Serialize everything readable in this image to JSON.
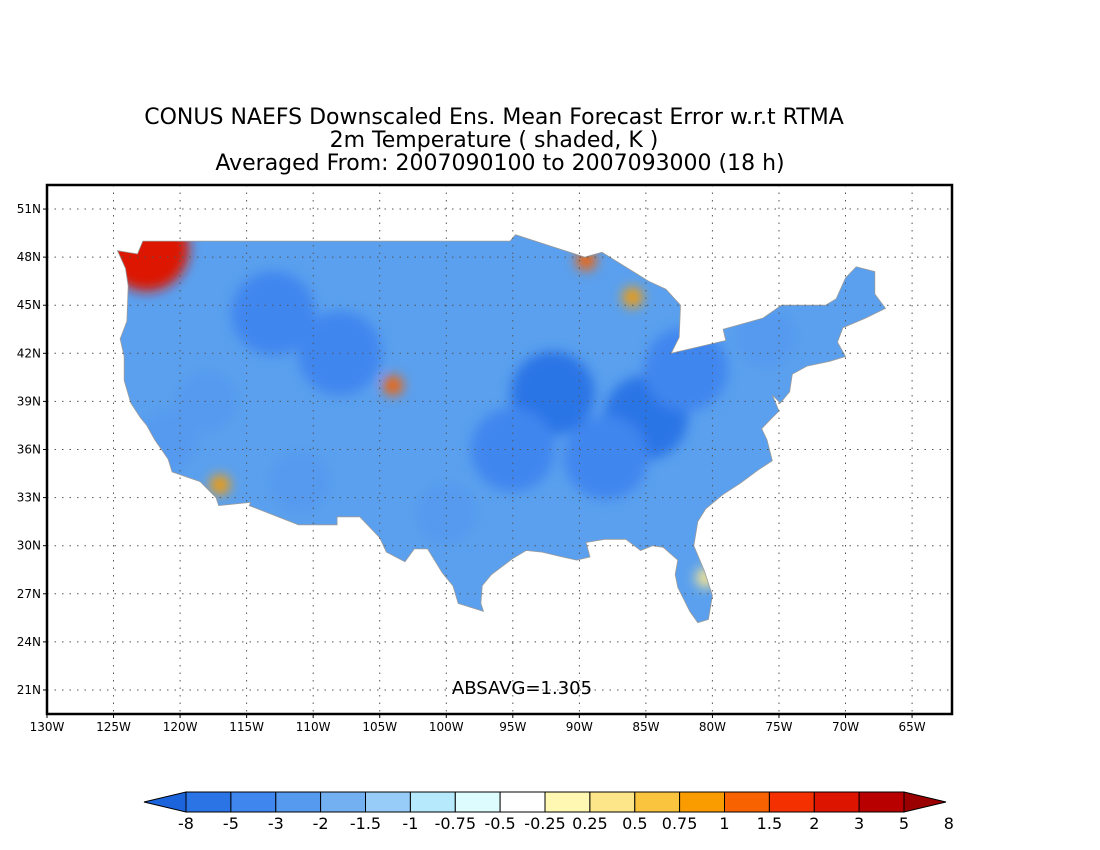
{
  "title": {
    "line1": "CONUS NAEFS Downscaled Ens. Mean Forecast Error w.r.t RTMA",
    "line2": "2m Temperature ( shaded, K )",
    "line3": "Averaged From: 2007090100 to 2007093000 (18 h)"
  },
  "map": {
    "lon_range": [
      -130,
      -62
    ],
    "lat_range": [
      19.5,
      52.5
    ],
    "lon_ticks": [
      {
        "lon": -130,
        "label": "130W"
      },
      {
        "lon": -125,
        "label": "125W"
      },
      {
        "lon": -120,
        "label": "120W"
      },
      {
        "lon": -115,
        "label": "115W"
      },
      {
        "lon": -110,
        "label": "110W"
      },
      {
        "lon": -105,
        "label": "105W"
      },
      {
        "lon": -100,
        "label": "100W"
      },
      {
        "lon": -95,
        "label": "95W"
      },
      {
        "lon": -90,
        "label": "90W"
      },
      {
        "lon": -85,
        "label": "85W"
      },
      {
        "lon": -80,
        "label": "80W"
      },
      {
        "lon": -75,
        "label": "75W"
      },
      {
        "lon": -70,
        "label": "70W"
      },
      {
        "lon": -65,
        "label": "65W"
      }
    ],
    "lat_ticks": [
      {
        "lat": 21,
        "label": "21N"
      },
      {
        "lat": 24,
        "label": "24N"
      },
      {
        "lat": 27,
        "label": "27N"
      },
      {
        "lat": 30,
        "label": "30N"
      },
      {
        "lat": 33,
        "label": "33N"
      },
      {
        "lat": 36,
        "label": "36N"
      },
      {
        "lat": 39,
        "label": "39N"
      },
      {
        "lat": 42,
        "label": "42N"
      },
      {
        "lat": 45,
        "label": "45N"
      },
      {
        "lat": 48,
        "label": "48N"
      },
      {
        "lat": 51,
        "label": "51N"
      }
    ],
    "grid": "dotted",
    "stat_label": "ABSAVG=1.305",
    "conus_outline": [
      [
        -124.7,
        48.4
      ],
      [
        -123.2,
        48.2
      ],
      [
        -122.8,
        49.0
      ],
      [
        -95.2,
        49.0
      ],
      [
        -94.8,
        49.4
      ],
      [
        -89.6,
        48.0
      ],
      [
        -88.3,
        48.3
      ],
      [
        -84.8,
        46.5
      ],
      [
        -83.5,
        46.0
      ],
      [
        -82.4,
        45.0
      ],
      [
        -82.5,
        43.0
      ],
      [
        -83.1,
        42.0
      ],
      [
        -79.0,
        42.8
      ],
      [
        -79.2,
        43.5
      ],
      [
        -76.2,
        44.2
      ],
      [
        -74.8,
        45.0
      ],
      [
        -71.5,
        45.0
      ],
      [
        -70.7,
        45.4
      ],
      [
        -70.0,
        46.7
      ],
      [
        -69.2,
        47.4
      ],
      [
        -67.8,
        47.1
      ],
      [
        -67.8,
        45.7
      ],
      [
        -67.0,
        44.8
      ],
      [
        -68.5,
        44.2
      ],
      [
        -70.2,
        43.6
      ],
      [
        -70.6,
        42.7
      ],
      [
        -70.0,
        41.8
      ],
      [
        -71.2,
        41.5
      ],
      [
        -72.9,
        41.2
      ],
      [
        -74.0,
        40.7
      ],
      [
        -74.2,
        39.6
      ],
      [
        -74.9,
        38.9
      ],
      [
        -75.5,
        39.4
      ],
      [
        -75.0,
        38.4
      ],
      [
        -75.6,
        37.9
      ],
      [
        -76.3,
        37.3
      ],
      [
        -75.9,
        36.6
      ],
      [
        -75.5,
        35.3
      ],
      [
        -76.6,
        34.7
      ],
      [
        -77.9,
        33.9
      ],
      [
        -79.2,
        33.2
      ],
      [
        -80.5,
        32.3
      ],
      [
        -81.1,
        31.5
      ],
      [
        -81.4,
        30.0
      ],
      [
        -80.6,
        28.4
      ],
      [
        -80.0,
        26.9
      ],
      [
        -80.3,
        25.4
      ],
      [
        -81.1,
        25.2
      ],
      [
        -81.7,
        25.9
      ],
      [
        -82.6,
        27.4
      ],
      [
        -82.8,
        28.2
      ],
      [
        -82.6,
        29.1
      ],
      [
        -83.7,
        29.9
      ],
      [
        -84.5,
        30.0
      ],
      [
        -85.4,
        29.7
      ],
      [
        -86.5,
        30.4
      ],
      [
        -88.1,
        30.4
      ],
      [
        -89.5,
        30.2
      ],
      [
        -89.2,
        29.3
      ],
      [
        -90.2,
        29.1
      ],
      [
        -91.3,
        29.3
      ],
      [
        -92.8,
        29.6
      ],
      [
        -94.0,
        29.7
      ],
      [
        -95.0,
        29.2
      ],
      [
        -96.6,
        28.2
      ],
      [
        -97.3,
        27.5
      ],
      [
        -97.4,
        26.4
      ],
      [
        -97.2,
        25.9
      ],
      [
        -99.1,
        26.4
      ],
      [
        -99.5,
        27.5
      ],
      [
        -100.3,
        28.3
      ],
      [
        -101.4,
        29.8
      ],
      [
        -102.4,
        29.8
      ],
      [
        -103.1,
        29.0
      ],
      [
        -104.5,
        29.6
      ],
      [
        -105.0,
        30.5
      ],
      [
        -106.5,
        31.8
      ],
      [
        -108.2,
        31.8
      ],
      [
        -108.2,
        31.3
      ],
      [
        -111.1,
        31.3
      ],
      [
        -114.8,
        32.5
      ],
      [
        -114.7,
        32.7
      ],
      [
        -117.1,
        32.5
      ],
      [
        -117.3,
        33.0
      ],
      [
        -118.5,
        34.0
      ],
      [
        -120.6,
        34.6
      ],
      [
        -120.9,
        35.4
      ],
      [
        -121.9,
        36.6
      ],
      [
        -122.5,
        37.5
      ],
      [
        -123.0,
        38.0
      ],
      [
        -123.7,
        38.9
      ],
      [
        -124.2,
        40.3
      ],
      [
        -124.2,
        41.8
      ],
      [
        -124.5,
        42.9
      ],
      [
        -124.0,
        44.0
      ],
      [
        -123.9,
        46.2
      ],
      [
        -124.1,
        47.3
      ],
      [
        -124.7,
        48.4
      ]
    ],
    "error_blobs": [
      {
        "lon": -92,
        "lat": 39.5,
        "value": -5
      },
      {
        "lon": -85,
        "lat": 38.0,
        "value": -5
      },
      {
        "lon": -88,
        "lat": 35.5,
        "value": -3
      },
      {
        "lon": -95,
        "lat": 36.0,
        "value": -3
      },
      {
        "lon": -82,
        "lat": 41.0,
        "value": -3
      },
      {
        "lon": -108,
        "lat": 42.0,
        "value": -3
      },
      {
        "lon": -113,
        "lat": 44.5,
        "value": -3
      },
      {
        "lon": -118,
        "lat": 39.0,
        "value": -2
      },
      {
        "lon": -100,
        "lat": 32.0,
        "value": -2
      },
      {
        "lon": -76,
        "lat": 43.0,
        "value": -2
      },
      {
        "lon": -121,
        "lat": 36.5,
        "value": -2
      },
      {
        "lon": -111,
        "lat": 34.0,
        "value": -2
      },
      {
        "lon": -122.5,
        "lat": 48.5,
        "value": 3
      },
      {
        "lon": -86,
        "lat": 45.5,
        "value": 1
      },
      {
        "lon": -104,
        "lat": 40.0,
        "value": 1.5
      },
      {
        "lon": -117,
        "lat": 33.8,
        "value": 1
      },
      {
        "lon": -89.5,
        "lat": 47.8,
        "value": 1.5
      },
      {
        "lon": -80.5,
        "lat": 28.0,
        "value": 0.5
      }
    ]
  },
  "colorbar": {
    "levels": [
      "-8",
      "-5",
      "-3",
      "-2",
      "-1.5",
      "-1",
      "-0.75",
      "-0.5",
      "-0.25",
      "0.25",
      "0.5",
      "0.75",
      "1",
      "1.5",
      "2",
      "3",
      "5",
      "8"
    ],
    "colors": [
      "#1c64dc",
      "#2b74e6",
      "#3f86ef",
      "#559aef",
      "#73b0f2",
      "#98ccf8",
      "#b5e9fb",
      "#ddfcfd",
      "#ffffff",
      "#fff8b2",
      "#fde68a",
      "#fbc43e",
      "#fa9b00",
      "#f96200",
      "#f42f00",
      "#dc1400",
      "#b80000",
      "#9a0000"
    ]
  }
}
